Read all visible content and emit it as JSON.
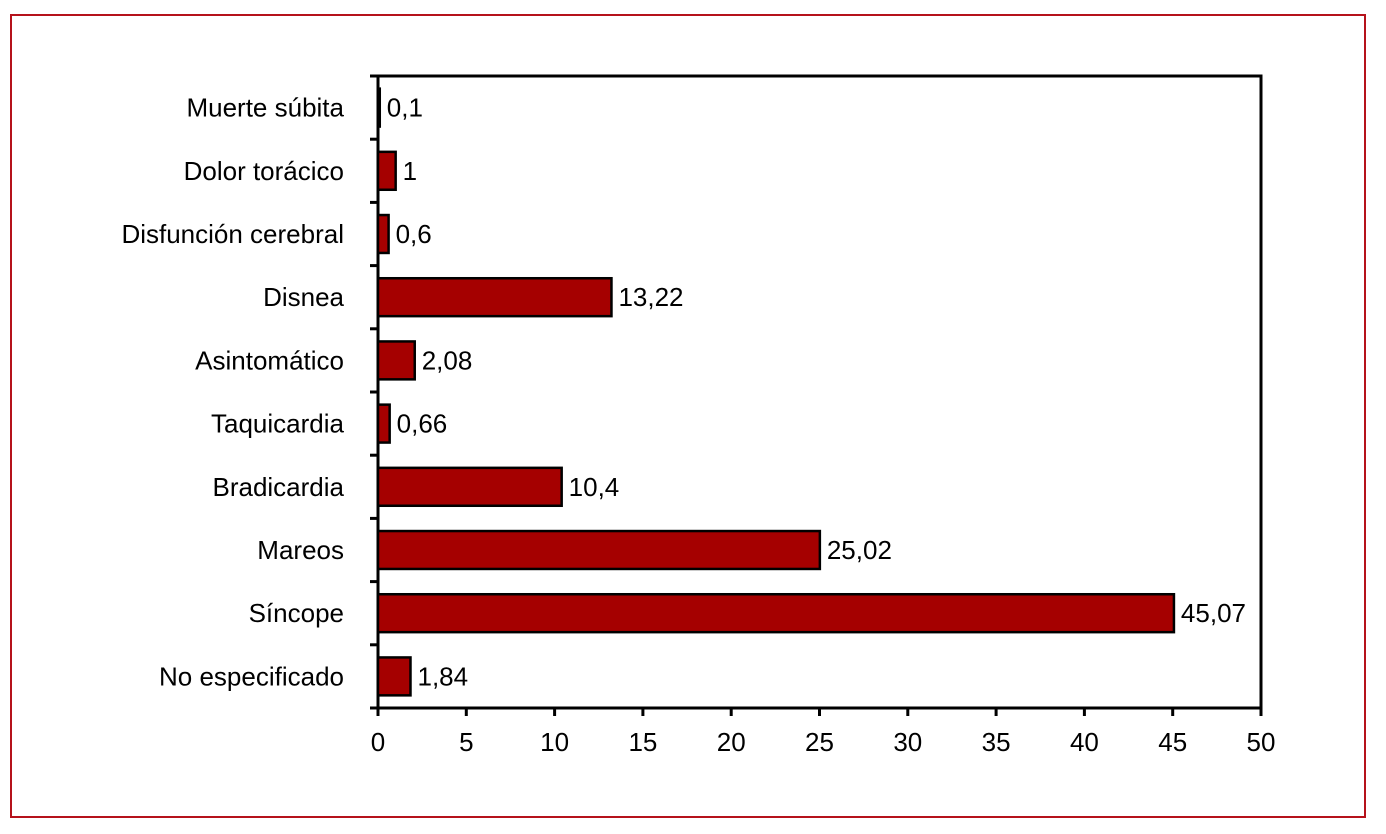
{
  "colors": {
    "frame": "#b5121b",
    "bar": "#a50000",
    "bar_stroke": "#000000"
  },
  "chart_data": {
    "type": "bar",
    "orientation": "horizontal",
    "title": "",
    "xlabel": "",
    "ylabel": "",
    "xlim": [
      0,
      50
    ],
    "xticks": [
      0,
      5,
      10,
      15,
      20,
      25,
      30,
      35,
      40,
      45,
      50
    ],
    "grid": false,
    "categories": [
      "Muerte súbita",
      "Dolor torácico",
      "Disfunción cerebral",
      "Disnea",
      "Asintomático",
      "Taquicardia",
      "Bradicardia",
      "Mareos",
      "Síncope",
      "No especificado"
    ],
    "values": [
      0.1,
      1,
      0.6,
      13.22,
      2.08,
      0.66,
      10.4,
      25.02,
      45.07,
      1.84
    ],
    "value_labels": [
      "0,1",
      "1",
      "0,6",
      "13,22",
      "2,08",
      "0,66",
      "10,4",
      "25,02",
      "45,07",
      "1,84"
    ]
  }
}
